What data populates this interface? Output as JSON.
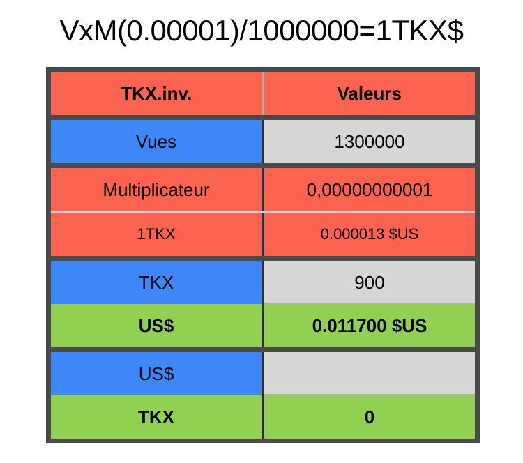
{
  "title": "VxM(0.00001)/1000000=1TKX$",
  "table": {
    "header": {
      "col1": "TKX.inv.",
      "col2": "Valeurs"
    },
    "rows": [
      {
        "label": "Vues",
        "value": "1300000"
      },
      {
        "label": "Multiplicateur",
        "value": "0,00000000001"
      },
      {
        "label": "1TKX",
        "value": "0.000013 $US"
      },
      {
        "label": "TKX",
        "value": "900"
      },
      {
        "label": "US$",
        "value": "0.011700 $US"
      },
      {
        "label": "US$",
        "value": ""
      },
      {
        "label": "TKX",
        "value": "0"
      }
    ]
  },
  "colors": {
    "header_red": "#fc6250",
    "row_blue": "#3e87f8",
    "row_gray": "#d6d6d6",
    "row_green": "#92d051",
    "border_dark": "#4a4a4a",
    "column_divider_dark": "#2c2f31",
    "header_divider_light": "#b5ada8",
    "text": "#000000",
    "background": "#ffffff"
  }
}
